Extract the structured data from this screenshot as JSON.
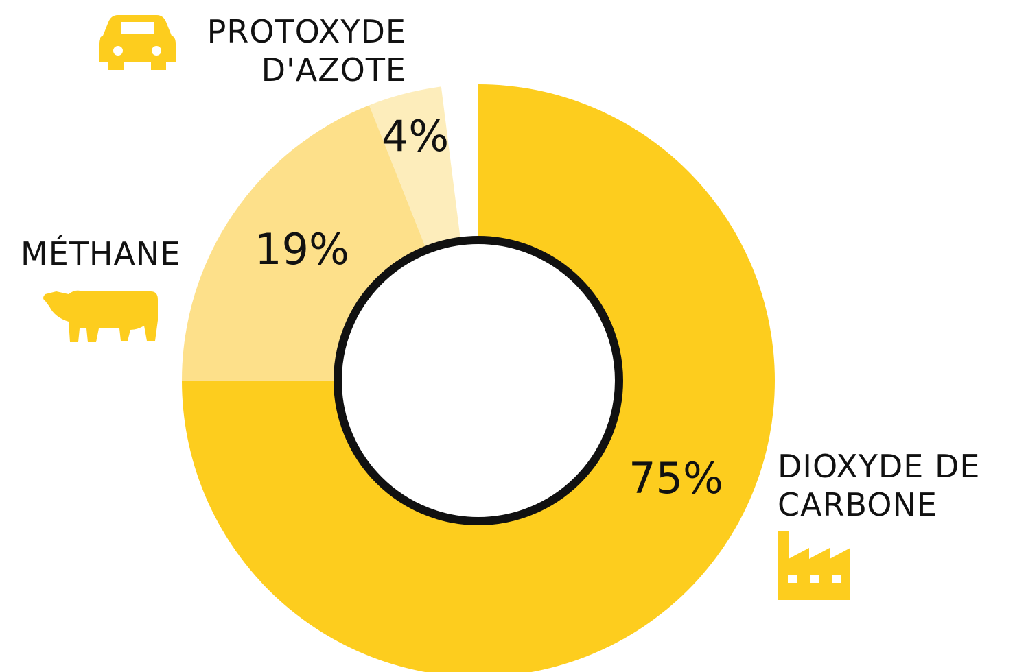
{
  "chart_data": {
    "type": "donut",
    "categories": [
      "DIOXYDE DE CARBONE",
      "MÉTHANE",
      "PROTOXYDE D'AZOTE"
    ],
    "values": [
      75,
      19,
      4
    ],
    "value_labels": [
      "75%",
      "19%",
      "4%"
    ],
    "colors": [
      "#fdcd1e",
      "#fde08a",
      "#fdedbb"
    ]
  }
}
